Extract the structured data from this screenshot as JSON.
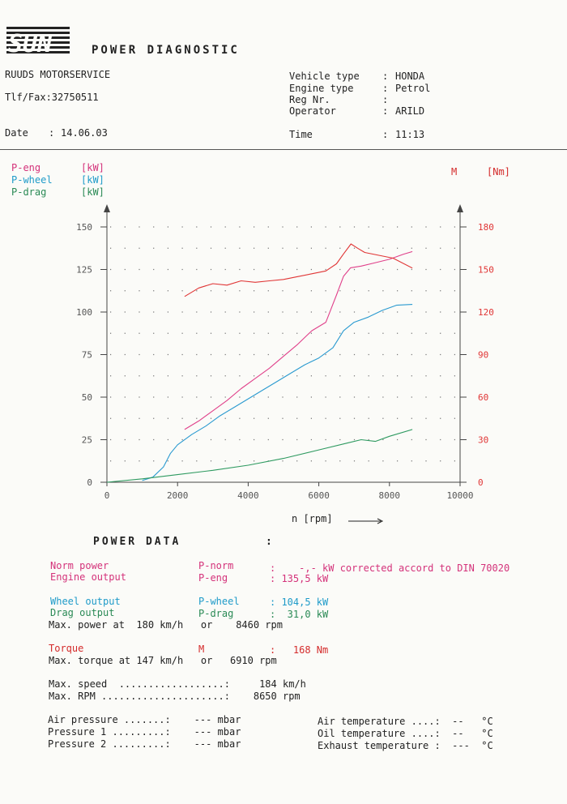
{
  "header": {
    "title": "POWER DIAGNOSTIC",
    "shop_name": "RUUDS MOTORSERVICE",
    "tlf_fax": "Tlf/Fax:32750511",
    "date_label": "Date",
    "date_value": "14.06.03",
    "vehicle_type_label": "Vehicle type",
    "vehicle_type_value": "HONDA",
    "engine_type_label": "Engine type",
    "engine_type_value": "Petrol",
    "reg_nr_label": "Reg Nr.",
    "reg_nr_value": "",
    "operator_label": "Operator",
    "operator_value": "ARILD",
    "time_label": "Time",
    "time_value": "11:13"
  },
  "legend": {
    "p_eng": "P-eng",
    "p_wheel": "P-wheel",
    "p_drag": "P-drag",
    "unit_kw": "[kW]",
    "m": "M",
    "unit_nm": "[Nm]"
  },
  "colors": {
    "p_eng": "#e0408a",
    "p_wheel": "#2a9ad0",
    "p_drag": "#2e9a60",
    "torque": "#e03535",
    "axis": "#444444"
  },
  "chart_data": {
    "type": "line",
    "title": "",
    "xlabel": "n [rpm]",
    "ylabel_left": "[kW]",
    "ylabel_right": "[Nm]",
    "xlim": [
      0,
      10000
    ],
    "ylim_left": [
      0,
      150
    ],
    "ylim_right": [
      0,
      180
    ],
    "x_ticks": [
      "0",
      "2000",
      "4000",
      "6000",
      "8000",
      "10000"
    ],
    "y_ticks_left": [
      "0",
      "25",
      "50",
      "75",
      "100",
      "125",
      "150"
    ],
    "y_ticks_right": [
      "0",
      "30",
      "60",
      "90",
      "120",
      "150",
      "180"
    ],
    "grid": "dotted",
    "series": [
      {
        "name": "P-eng",
        "axis": "left",
        "color": "#e0408a",
        "x": [
          2200,
          2600,
          3000,
          3400,
          3800,
          4200,
          4600,
          5000,
          5400,
          5800,
          6200,
          6500,
          6700,
          6900,
          7200,
          7600,
          8000,
          8400,
          8650
        ],
        "y": [
          31,
          36,
          42,
          48,
          55,
          61,
          67,
          74,
          81,
          89,
          94,
          110,
          121,
          126,
          127,
          129,
          131,
          134,
          135.5
        ]
      },
      {
        "name": "P-wheel",
        "axis": "left",
        "color": "#2a9ad0",
        "x": [
          1000,
          1300,
          1600,
          1800,
          2000,
          2400,
          2800,
          3200,
          3600,
          4000,
          4400,
          4800,
          5200,
          5600,
          6000,
          6400,
          6700,
          7000,
          7400,
          7800,
          8200,
          8650
        ],
        "y": [
          1,
          3,
          9,
          17,
          22,
          28,
          33,
          39,
          44,
          49,
          54,
          59,
          64,
          69,
          73,
          79,
          89,
          94,
          97,
          101,
          104,
          104.5
        ]
      },
      {
        "name": "P-drag",
        "axis": "left",
        "color": "#2e9a60",
        "x": [
          0,
          1000,
          2000,
          3000,
          4000,
          5000,
          6000,
          6800,
          7200,
          7600,
          8000,
          8650
        ],
        "y": [
          0,
          2,
          4.5,
          7,
          10,
          14,
          19,
          23,
          25,
          24,
          27,
          31
        ]
      },
      {
        "name": "M",
        "axis": "right",
        "color": "#e03535",
        "x": [
          2200,
          2600,
          3000,
          3400,
          3800,
          4200,
          4600,
          5000,
          5400,
          5800,
          6200,
          6500,
          6700,
          6910,
          7100,
          7300,
          7700,
          8100,
          8650
        ],
        "y": [
          131,
          137,
          140,
          139,
          142,
          141,
          142,
          143,
          145,
          147,
          149,
          154,
          161,
          168,
          165,
          162,
          160,
          158,
          151
        ]
      }
    ]
  },
  "power_data": {
    "heading": "POWER DATA",
    "colon": ":",
    "norm_power_label": "Norm power",
    "norm_power_sym": "P-norm",
    "norm_power_value": ":    -,- kW corrected accord to DIN 70020",
    "engine_output_label": "Engine output",
    "engine_output_sym": "P-eng",
    "engine_output_value": ": 135,5 kW",
    "wheel_output_label": "Wheel output",
    "wheel_output_sym": "P-wheel",
    "wheel_output_value": ": 104,5 kW",
    "drag_output_label": "Drag output",
    "drag_output_sym": "P-drag",
    "drag_output_value": ":  31,0 kW",
    "max_power_line": "Max. power at  180 km/h   or    8460 rpm",
    "torque_label": "Torque",
    "torque_sym": "M",
    "torque_value": ":   168 Nm",
    "max_torque_line": "Max. torque at 147 km/h   or   6910 rpm",
    "max_speed_line": "Max. speed  ..................:     184 km/h",
    "max_rpm_line": "Max. RPM .....................:    8650 rpm",
    "air_pressure_line": "Air pressure .......:    --- mbar",
    "pressure1_line": "Pressure 1 .........:    --- mbar",
    "pressure2_line": "Pressure 2 .........:    --- mbar",
    "air_temp_line": "Air temperature ....:  --   °C",
    "oil_temp_line": "Oil temperature ....:  --   °C",
    "exhaust_temp_line": "Exhaust temperature :  ---  °C"
  }
}
